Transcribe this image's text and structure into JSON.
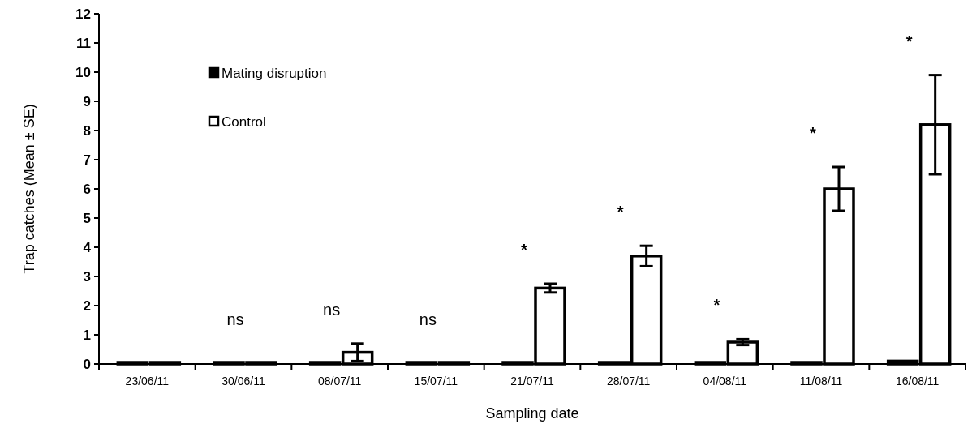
{
  "chart_data": {
    "type": "bar",
    "xlabel": "Sampling date",
    "ylabel": "Trap catches (Mean ± SE)",
    "categories": [
      "23/06/11",
      "30/06/11",
      "08/07/11",
      "15/07/11",
      "21/07/11",
      "28/07/11",
      "04/08/11",
      "11/08/11",
      "16/08/11"
    ],
    "series": [
      {
        "name": "Mating disruption",
        "color": "#000000",
        "values": [
          0,
          0,
          0,
          0,
          0,
          0,
          0,
          0.05,
          0.1
        ]
      },
      {
        "name": "Control",
        "color": "#ffffff",
        "values": [
          0,
          0.05,
          0.4,
          0.05,
          2.6,
          3.7,
          0.75,
          6.0,
          8.2
        ],
        "errors": [
          null,
          null,
          0.3,
          null,
          0.15,
          0.35,
          0.1,
          0.75,
          1.7
        ]
      }
    ],
    "ylim": [
      0,
      12
    ],
    "yticks": [
      0,
      1,
      2,
      3,
      4,
      5,
      6,
      7,
      8,
      9,
      10,
      11,
      12
    ],
    "grid": false,
    "legend": "top left",
    "annotations": [
      "ns",
      "ns",
      "ns",
      "*",
      "*",
      "*",
      "*",
      "*"
    ]
  }
}
